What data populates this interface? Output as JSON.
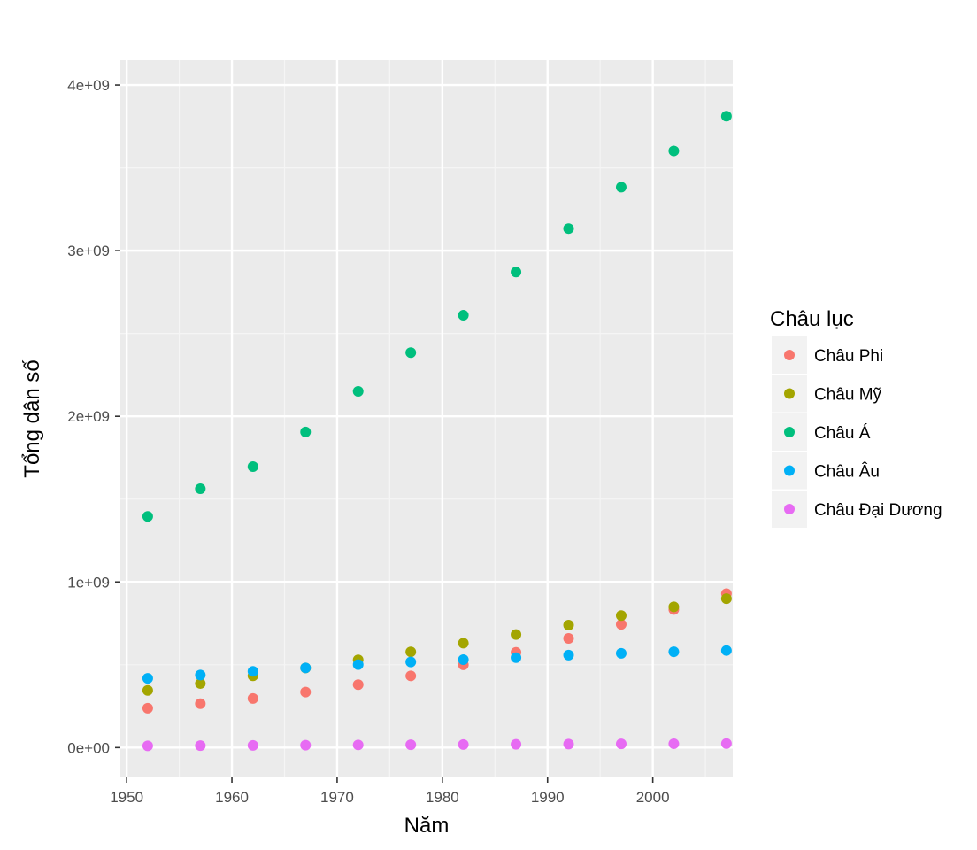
{
  "chart_data": {
    "type": "scatter",
    "title": "",
    "xlabel": "Năm",
    "ylabel": "Tổng dân số",
    "xlim": [
      1949.4,
      2007.6
    ],
    "ylim": [
      -180000000,
      4150000000
    ],
    "x_ticks": [
      1950,
      1960,
      1970,
      1980,
      1990,
      2000
    ],
    "x_tick_labels": [
      "1950",
      "1960",
      "1970",
      "1980",
      "1990",
      "2000"
    ],
    "y_ticks": [
      0,
      1000000000,
      2000000000,
      3000000000,
      4000000000
    ],
    "y_tick_labels": [
      "0e+00",
      "1e+09",
      "2e+09",
      "3e+09",
      "4e+09"
    ],
    "grid": true,
    "legend": {
      "title": "Châu lục",
      "placement": "right"
    },
    "series": [
      {
        "name": "Châu Phi",
        "color": "#F8766D",
        "x": [
          1952,
          1957,
          1962,
          1967,
          1972,
          1977,
          1982,
          1987,
          1992,
          1997,
          2002,
          2007
        ],
        "y": [
          237640501,
          264837738,
          296516865,
          335289489,
          379879541,
          433061021,
          499348587,
          574834110,
          659081517,
          743832984,
          833723916,
          929539692
        ]
      },
      {
        "name": "Châu Mỹ",
        "color": "#A3A500",
        "x": [
          1952,
          1957,
          1962,
          1967,
          1972,
          1977,
          1982,
          1987,
          1992,
          1997,
          2002,
          2007
        ],
        "y": [
          345152446,
          386953916,
          433270254,
          480746623,
          529384210,
          578067699,
          630290920,
          682753971,
          739274104,
          796900410,
          849772762,
          898871184
        ]
      },
      {
        "name": "Châu Á",
        "color": "#00BF7D",
        "x": [
          1952,
          1957,
          1962,
          1967,
          1972,
          1977,
          1982,
          1987,
          1992,
          1997,
          2002,
          2007
        ],
        "y": [
          1395357352,
          1562780599,
          1696357182,
          1905662900,
          2150972248,
          2384513556,
          2610135582,
          2871220762,
          3133292191,
          3383285500,
          3601802203,
          3811953827
        ]
      },
      {
        "name": "Châu Âu",
        "color": "#00B0F6",
        "x": [
          1952,
          1957,
          1962,
          1967,
          1972,
          1977,
          1982,
          1987,
          1992,
          1997,
          2002,
          2007
        ],
        "y": [
          418120846,
          437890351,
          460355155,
          481178958,
          500635059,
          517164531,
          531266901,
          543094160,
          558142797,
          568944148,
          578223869,
          586098529
        ]
      },
      {
        "name": "Châu Đại Dương",
        "color": "#E76BF3",
        "x": [
          1952,
          1957,
          1962,
          1967,
          1972,
          1977,
          1982,
          1987,
          1992,
          1997,
          2002,
          2007
        ],
        "y": [
          10686006,
          11941976,
          13283518,
          14600414,
          16106100,
          17239000,
          18394850,
          19574415,
          20919651,
          22241430,
          23454829,
          24549947
        ]
      }
    ]
  }
}
